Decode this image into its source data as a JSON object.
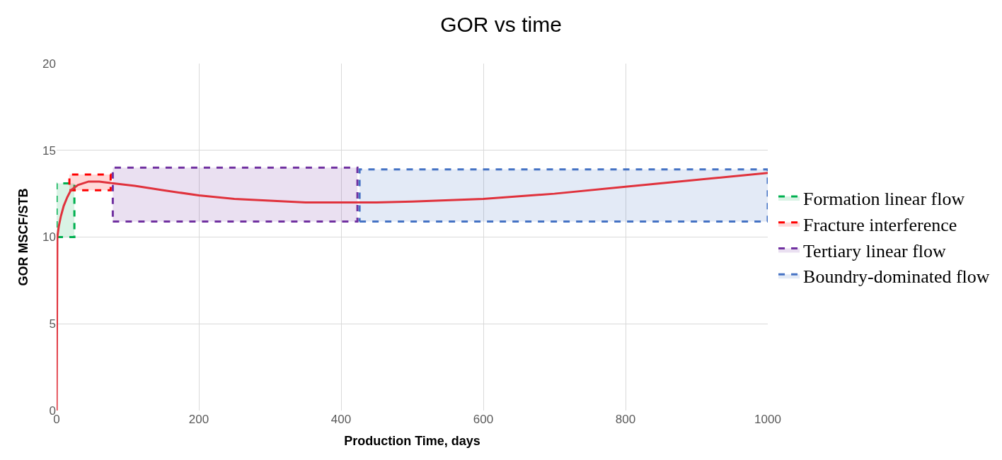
{
  "chart_data": {
    "type": "line",
    "title": "GOR vs time",
    "xlabel": "Production Time, days",
    "ylabel": "GOR MSCF/STB",
    "xlim": [
      0,
      1000
    ],
    "xticks": [
      0,
      200,
      400,
      600,
      800,
      1000
    ],
    "ylim": [
      0,
      20
    ],
    "yticks": [
      0,
      5,
      10,
      15,
      20
    ],
    "grid": true,
    "legend": "right",
    "marker": "none",
    "series": [
      {
        "color": "#e0323c",
        "line_style": "solid",
        "x": [
          0,
          1,
          3,
          6,
          10,
          15,
          20,
          30,
          45,
          60,
          80,
          110,
          150,
          200,
          250,
          300,
          350,
          400,
          450,
          500,
          600,
          700,
          800,
          900,
          1000
        ],
        "values": [
          0,
          10,
          10.6,
          11.2,
          11.8,
          12.3,
          12.7,
          13.0,
          13.2,
          13.2,
          13.1,
          12.95,
          12.7,
          12.4,
          12.2,
          12.1,
          12.0,
          12.0,
          12.0,
          12.05,
          12.2,
          12.5,
          12.9,
          13.3,
          13.7
        ]
      },
      {
        "type": "area",
        "name": "Formation linear flow",
        "color": "#00b050",
        "line_style": "dashed",
        "x": [
          0,
          25,
          25,
          0,
          0
        ],
        "values": [
          10.0,
          10.0,
          13.1,
          13.1,
          10.0
        ]
      },
      {
        "type": "area",
        "name": "Fracture interference",
        "color": "#ff0000",
        "line_style": "dashed",
        "x": [
          18,
          76,
          76,
          18,
          18
        ],
        "values": [
          12.7,
          12.7,
          13.6,
          13.6,
          12.7
        ]
      },
      {
        "type": "area",
        "name": "Tertiary linear flow",
        "color": "#7030a0",
        "line_style": "dashed",
        "x": [
          79,
          423,
          423,
          79,
          79
        ],
        "values": [
          10.9,
          10.9,
          14.0,
          14.0,
          10.9
        ]
      },
      {
        "type": "area",
        "name": "Boundry-dominated flow",
        "color": "#4472c4",
        "line_style": "dashed",
        "x": [
          426,
          1000,
          1000,
          426,
          426
        ],
        "values": [
          10.9,
          10.9,
          13.9,
          13.9,
          10.9
        ]
      }
    ]
  }
}
